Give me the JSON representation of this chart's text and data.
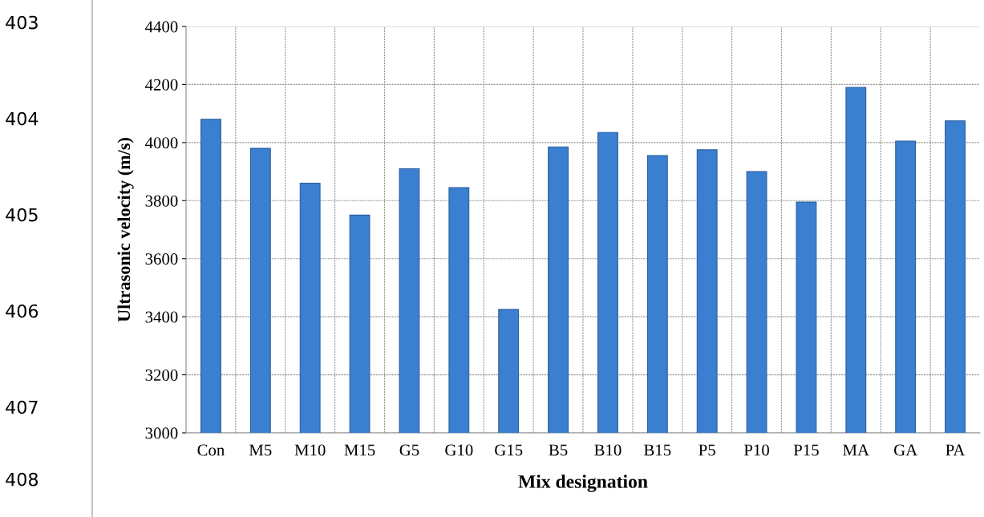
{
  "chart_data": {
    "type": "bar",
    "xlabel": "Mix designation",
    "ylabel": "Ultrasonic velocity (m/s)",
    "categories": [
      "Con",
      "M5",
      "M10",
      "M15",
      "G5",
      "G10",
      "G15",
      "B5",
      "B10",
      "B15",
      "P5",
      "P10",
      "P15",
      "MA",
      "GA",
      "PA"
    ],
    "values": [
      4080,
      3980,
      3860,
      3750,
      3910,
      3845,
      3425,
      3985,
      4035,
      3955,
      3975,
      3900,
      3795,
      4190,
      4005,
      4075
    ],
    "color": "#3b7fd0",
    "ylim": [
      3000,
      4400
    ],
    "yticks": [
      3000,
      3200,
      3400,
      3600,
      3800,
      4000,
      4200,
      4400
    ],
    "grid": true,
    "annotations": [
      "403",
      "404",
      "405",
      "406",
      "407",
      "408"
    ]
  }
}
